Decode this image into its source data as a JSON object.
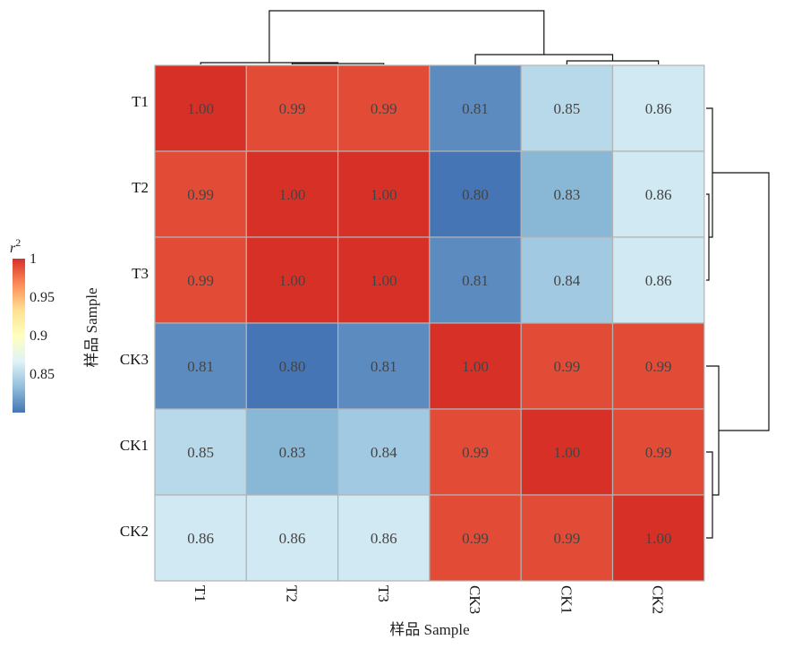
{
  "chart_data": {
    "type": "heatmap",
    "rows": [
      "T1",
      "T2",
      "T3",
      "CK3",
      "CK1",
      "CK2"
    ],
    "columns": [
      "T1",
      "T2",
      "T3",
      "CK3",
      "CK1",
      "CK2"
    ],
    "values": [
      [
        1.0,
        0.99,
        0.99,
        0.81,
        0.85,
        0.86
      ],
      [
        0.99,
        1.0,
        1.0,
        0.8,
        0.83,
        0.86
      ],
      [
        0.99,
        1.0,
        1.0,
        0.81,
        0.84,
        0.86
      ],
      [
        0.81,
        0.8,
        0.81,
        1.0,
        0.99,
        0.99
      ],
      [
        0.85,
        0.83,
        0.84,
        0.99,
        1.0,
        0.99
      ],
      [
        0.86,
        0.86,
        0.86,
        0.99,
        0.99,
        1.0
      ]
    ],
    "value_labels": [
      [
        "1.00",
        "0.99",
        "0.99",
        "0.81",
        "0.85",
        "0.86"
      ],
      [
        "0.99",
        "1.00",
        "1.00",
        "0.80",
        "0.83",
        "0.86"
      ],
      [
        "0.99",
        "1.00",
        "1.00",
        "0.81",
        "0.84",
        "0.86"
      ],
      [
        "0.81",
        "0.80",
        "0.81",
        "1.00",
        "0.99",
        "0.99"
      ],
      [
        "0.85",
        "0.83",
        "0.84",
        "0.99",
        "1.00",
        "0.99"
      ],
      [
        "0.86",
        "0.86",
        "0.86",
        "0.99",
        "0.99",
        "1.00"
      ]
    ],
    "xlabel": "样品 Sample",
    "ylabel": "样品 Sample",
    "legend": {
      "title_base": "r",
      "title_sup": "2",
      "ticks": [
        1,
        0.95,
        0.9,
        0.85
      ],
      "tick_labels": [
        "1",
        "0.95",
        "0.9",
        "0.85"
      ],
      "range": [
        0.8,
        1.0
      ],
      "placement": "left"
    },
    "colorscale": [
      "#4575b4",
      "#91bfdb",
      "#e0f3f8",
      "#ffffbf",
      "#fee090",
      "#fc8d59",
      "#d73027"
    ],
    "grid_color": "#b3b3b3",
    "dendrograms": {
      "top": true,
      "right": true
    }
  }
}
